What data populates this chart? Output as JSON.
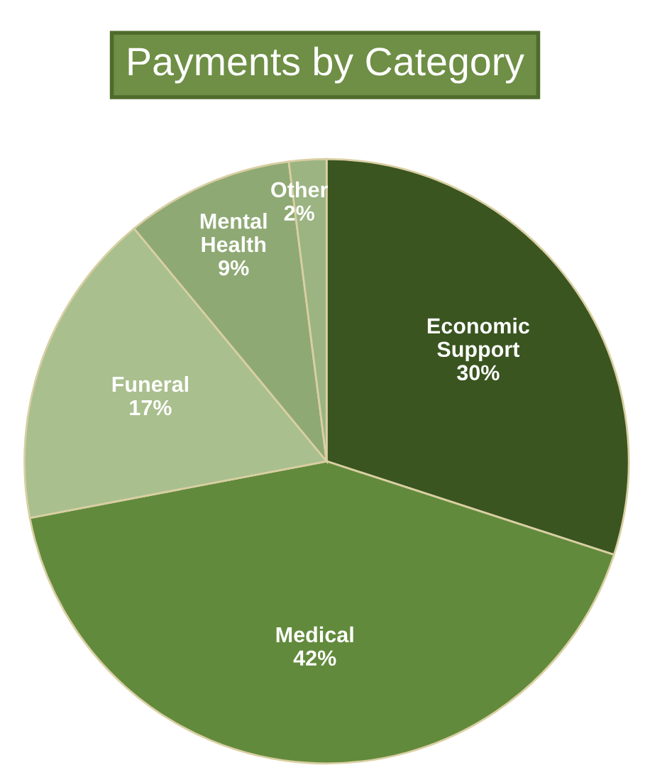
{
  "chart_data": {
    "type": "pie",
    "title": "Payments by Category",
    "categories": [
      "Economic\nSupport",
      "Medical",
      "Funeral",
      "Mental\nHealth",
      "Other"
    ],
    "values": [
      30,
      42,
      17,
      9,
      2
    ],
    "colors": [
      "#3a5520",
      "#628a3c",
      "#a9bf8e",
      "#8fa974",
      "#9bb482"
    ],
    "value_labels": [
      "30%",
      "42%",
      "17%",
      "9%",
      "2%"
    ]
  }
}
